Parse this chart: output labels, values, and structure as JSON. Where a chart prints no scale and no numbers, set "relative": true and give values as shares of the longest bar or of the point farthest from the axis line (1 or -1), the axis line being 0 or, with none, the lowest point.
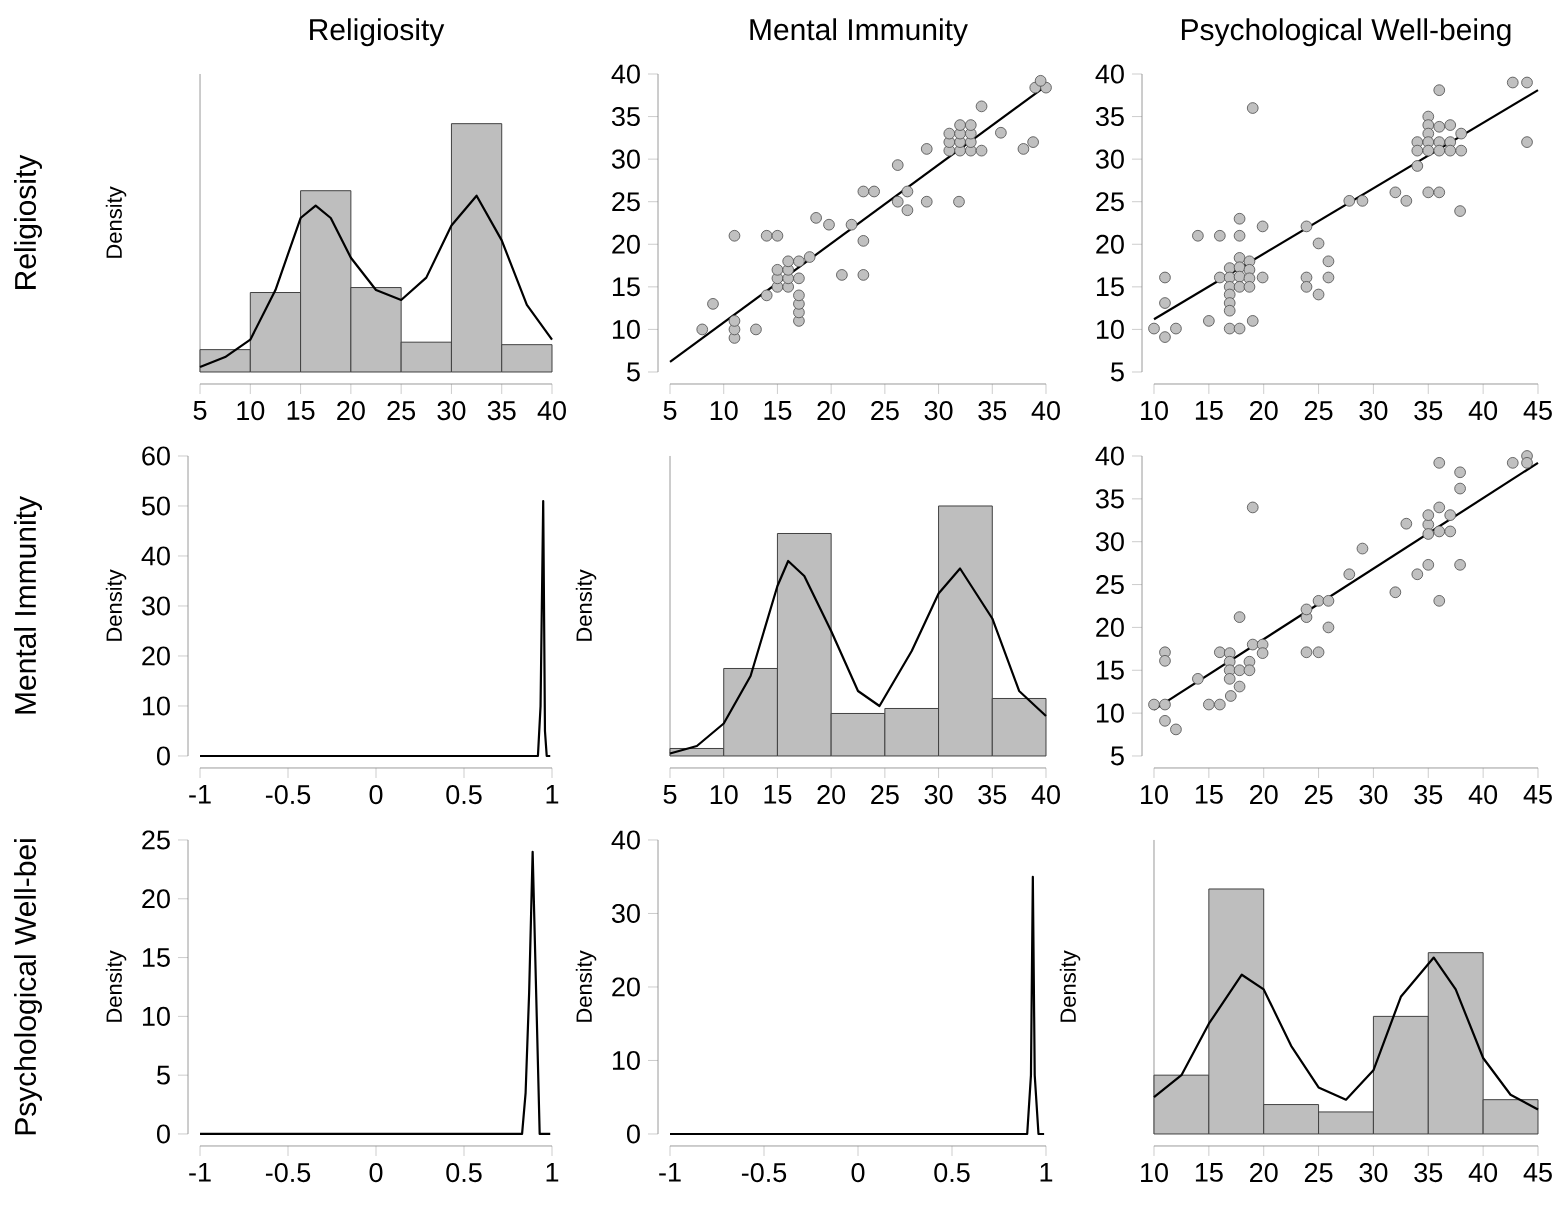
{
  "chart_data": [
    {
      "type": "histogram",
      "title": "Religiosity",
      "ylabel": "Density",
      "annotations": [
        "Religiosity"
      ],
      "relative": true,
      "bins": [
        5,
        10,
        15,
        20,
        25,
        30,
        35,
        40
      ],
      "xlim": [
        5,
        40
      ],
      "xticks": [
        5,
        10,
        15,
        20,
        25,
        30,
        35,
        40
      ],
      "series": [
        {
          "color": "#bebebe",
          "values": [
            0.09,
            0.32,
            0.73,
            0.34,
            0.12,
            1,
            0.11
          ]
        },
        {
          "type": "line",
          "color": "#000000",
          "x": [
            5,
            7.5,
            10,
            12.5,
            15,
            16.5,
            18,
            20,
            22.5,
            25,
            27.5,
            30,
            32.5,
            35,
            37.5,
            40
          ],
          "values": [
            0.02,
            0.06,
            0.13,
            0.33,
            0.62,
            0.67,
            0.62,
            0.46,
            0.33,
            0.29,
            0.38,
            0.59,
            0.71,
            0.53,
            0.27,
            0.13
          ]
        }
      ]
    },
    {
      "type": "scatter",
      "title": "Mental Immunity",
      "xlim": [
        5,
        40
      ],
      "xticks": [
        5,
        10,
        15,
        20,
        25,
        30,
        35,
        40
      ],
      "ylim": [
        5,
        40
      ],
      "yticks": [
        5,
        10,
        15,
        20,
        25,
        30,
        35,
        40
      ],
      "series": [
        {
          "marker": "circle",
          "color": "#c0c0c0",
          "x": [
            8,
            9,
            11,
            11,
            11,
            11,
            13,
            14,
            14,
            15,
            15,
            15,
            15,
            16,
            16,
            16,
            16,
            17,
            17,
            17,
            17,
            17,
            17,
            18,
            18.6,
            19.8,
            21,
            21.9,
            23,
            23,
            23,
            24,
            26.2,
            26.2,
            27.1,
            27.1,
            28.9,
            28.9,
            31.9,
            31,
            31,
            31,
            32,
            32,
            32,
            32,
            33,
            33,
            33,
            33,
            34,
            34,
            35.8,
            37.9,
            38.8,
            39,
            40,
            39.5
          ],
          "values": [
            10,
            13,
            9,
            10,
            11,
            21,
            10,
            14,
            21,
            15,
            16,
            17,
            21,
            15,
            16,
            17,
            18,
            11,
            12,
            13,
            14,
            16,
            18,
            18.5,
            23.1,
            22.3,
            16.4,
            22.3,
            16.4,
            20.4,
            26.2,
            26.2,
            29.3,
            25,
            26.2,
            24,
            31.2,
            25,
            25,
            31,
            32,
            33,
            31,
            32,
            33,
            34,
            31,
            32,
            33,
            34,
            36.2,
            31,
            33.1,
            31.2,
            32,
            38.4,
            38.4,
            39.2
          ]
        },
        {
          "type": "line",
          "color": "#000000",
          "x": [
            5,
            40
          ],
          "values": [
            6.2,
            38.6
          ]
        }
      ]
    },
    {
      "type": "scatter",
      "title": "Psychological Well-being",
      "xlim": [
        10,
        45
      ],
      "xticks": [
        10,
        15,
        20,
        25,
        30,
        35,
        40,
        45
      ],
      "ylim": [
        5,
        40
      ],
      "yticks": [
        5,
        10,
        15,
        20,
        25,
        30,
        35,
        40
      ],
      "series": [
        {
          "marker": "circle",
          "color": "#c0c0c0",
          "x": [
            10,
            11,
            11,
            11,
            12,
            15,
            14,
            16,
            16,
            16.9,
            16.9,
            16.9,
            16.9,
            16.9,
            16.9,
            17.8,
            17.8,
            16.9,
            17.8,
            17.8,
            17.8,
            17.8,
            17.8,
            18.7,
            18.7,
            18.7,
            18.7,
            19,
            19,
            19.9,
            19.9,
            23.9,
            23.9,
            23.9,
            25,
            25,
            25.9,
            25.9,
            27.8,
            29,
            32,
            33,
            34,
            34,
            34,
            35,
            35,
            35,
            35,
            35,
            35,
            36,
            36,
            36,
            36,
            36,
            37,
            37,
            37,
            38,
            38,
            37.9,
            42.7,
            44,
            44
          ],
          "values": [
            10.1,
            9.1,
            13.1,
            16.1,
            10.1,
            11,
            21,
            21,
            16.1,
            17.2,
            16.1,
            15,
            14.1,
            13.1,
            12.2,
            23,
            21,
            10.1,
            10.1,
            18.4,
            17.3,
            16.2,
            15,
            18,
            17,
            16,
            15,
            36,
            11,
            22.1,
            16.1,
            22.1,
            16.1,
            15,
            14.1,
            20.1,
            18,
            16.1,
            25.1,
            25.1,
            26.1,
            25.1,
            29.2,
            32,
            31,
            35,
            34,
            33,
            32,
            31,
            26.1,
            26.1,
            38.1,
            33.8,
            32,
            31,
            34,
            32,
            31,
            33,
            31,
            23.9,
            39,
            39,
            32
          ]
        },
        {
          "type": "line",
          "color": "#000000",
          "x": [
            10,
            45
          ],
          "values": [
            11.2,
            38.1
          ]
        }
      ]
    },
    {
      "type": "line",
      "ylabel": "Density",
      "annotations": [
        "Mental Immunity"
      ],
      "xlim": [
        -1,
        1
      ],
      "xticks": [
        -1,
        -0.5,
        0,
        0.5,
        1
      ],
      "ylim": [
        0,
        60
      ],
      "yticks": [
        0,
        10,
        20,
        30,
        40,
        50,
        60
      ],
      "series": [
        {
          "color": "#000000",
          "x": [
            -1,
            0.92,
            0.935,
            0.95,
            0.96,
            0.97,
            0.99
          ],
          "values": [
            0,
            0,
            10,
            51,
            5,
            0,
            0
          ]
        }
      ]
    },
    {
      "type": "histogram",
      "ylabel": "Density",
      "relative": true,
      "bins": [
        5,
        10,
        15,
        20,
        25,
        30,
        35,
        40
      ],
      "xlim": [
        5,
        40
      ],
      "xticks": [
        5,
        10,
        15,
        20,
        25,
        30,
        35,
        40
      ],
      "series": [
        {
          "color": "#bebebe",
          "values": [
            0.03,
            0.35,
            0.89,
            0.17,
            0.19,
            1,
            0.23
          ]
        },
        {
          "type": "line",
          "color": "#000000",
          "x": [
            5,
            7.5,
            10,
            12.5,
            15,
            16,
            17.5,
            20,
            22.5,
            24.5,
            27.5,
            30,
            32,
            35,
            37.5,
            40
          ],
          "values": [
            0.01,
            0.04,
            0.13,
            0.32,
            0.68,
            0.78,
            0.72,
            0.5,
            0.26,
            0.2,
            0.42,
            0.65,
            0.75,
            0.55,
            0.26,
            0.16
          ]
        }
      ]
    },
    {
      "type": "scatter",
      "xlim": [
        10,
        45
      ],
      "xticks": [
        10,
        15,
        20,
        25,
        30,
        35,
        40,
        45
      ],
      "ylim": [
        5,
        40
      ],
      "yticks": [
        5,
        10,
        15,
        20,
        25,
        30,
        35,
        40
      ],
      "series": [
        {
          "marker": "circle",
          "color": "#c0c0c0",
          "x": [
            10,
            11,
            11,
            11,
            11,
            12,
            14,
            15,
            16,
            16,
            16.9,
            16.9,
            16.9,
            16.9,
            17,
            17.8,
            17.8,
            17.8,
            18.7,
            18.7,
            19,
            19,
            19.9,
            19.9,
            23.9,
            23.9,
            23.9,
            25,
            25,
            25.9,
            25.9,
            27.8,
            29,
            32,
            33,
            34,
            35,
            35,
            35,
            35,
            36,
            36,
            36,
            36,
            37,
            37,
            37.9,
            37.9,
            37.9,
            42.7,
            44,
            44
          ],
          "values": [
            11,
            11,
            17.1,
            16.1,
            9.1,
            8.1,
            14,
            11,
            11,
            17.1,
            17,
            16,
            15,
            14,
            12,
            21.2,
            15,
            13.1,
            16,
            15,
            34,
            18,
            18,
            17,
            21.2,
            22.1,
            17.1,
            17.1,
            23.1,
            23.1,
            20,
            26.2,
            29.2,
            24.1,
            32.1,
            26.2,
            32,
            30.9,
            33.1,
            27.3,
            34,
            39.2,
            23.1,
            31.2,
            33.1,
            31.2,
            38.1,
            36.2,
            27.3,
            39.2,
            40,
            39.2
          ]
        },
        {
          "type": "line",
          "color": "#000000",
          "x": [
            10,
            45
          ],
          "values": [
            10.4,
            39.2
          ]
        }
      ]
    },
    {
      "type": "line",
      "ylabel": "Density",
      "annotations": [
        "Psychological Well-bei"
      ],
      "xlim": [
        -1,
        1
      ],
      "xticks": [
        -1,
        -0.5,
        0,
        0.5,
        1
      ],
      "ylim": [
        0,
        25
      ],
      "yticks": [
        0,
        5,
        10,
        15,
        20,
        25
      ],
      "series": [
        {
          "color": "#000000",
          "x": [
            -1,
            0.83,
            0.85,
            0.87,
            0.89,
            0.91,
            0.93,
            0.99
          ],
          "values": [
            0,
            0,
            3.5,
            12,
            24,
            12,
            0,
            0
          ]
        }
      ]
    },
    {
      "type": "line",
      "ylabel": "Density",
      "xlim": [
        -1,
        1
      ],
      "xticks": [
        -1,
        -0.5,
        0,
        0.5,
        1
      ],
      "ylim": [
        0,
        40
      ],
      "yticks": [
        0,
        10,
        20,
        30,
        40
      ],
      "series": [
        {
          "color": "#000000",
          "x": [
            -1,
            0.9,
            0.92,
            0.93,
            0.94,
            0.96,
            0.99
          ],
          "values": [
            0,
            0,
            8,
            35,
            8,
            0,
            0
          ]
        }
      ]
    },
    {
      "type": "histogram",
      "ylabel": "Density",
      "relative": true,
      "bins": [
        10,
        15,
        20,
        25,
        30,
        35,
        40,
        45
      ],
      "xlim": [
        10,
        45
      ],
      "xticks": [
        10,
        15,
        20,
        25,
        30,
        35,
        40,
        45
      ],
      "series": [
        {
          "color": "#bebebe",
          "values": [
            0.24,
            1,
            0.12,
            0.09,
            0.48,
            0.74,
            0.14
          ]
        },
        {
          "type": "line",
          "color": "#000000",
          "x": [
            10,
            12.5,
            15,
            18,
            20,
            22.5,
            25,
            27.5,
            30,
            32.5,
            35.5,
            37.5,
            40,
            42.5,
            45
          ],
          "values": [
            0.15,
            0.24,
            0.45,
            0.65,
            0.59,
            0.36,
            0.19,
            0.14,
            0.26,
            0.56,
            0.72,
            0.59,
            0.31,
            0.16,
            0.1
          ]
        }
      ]
    }
  ]
}
